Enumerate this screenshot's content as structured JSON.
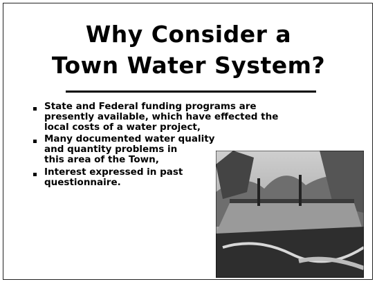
{
  "title": [
    "Why Consider a",
    "Town Water System?"
  ],
  "bullets": [
    [
      "State and Federal funding programs are",
      "presently available, which have effected the",
      "local costs of a water project,"
    ],
    [
      "Many documented water quality",
      "and quantity problems in",
      "this area of the Town,"
    ],
    [
      "Interest expressed in past",
      "questionnaire."
    ]
  ]
}
